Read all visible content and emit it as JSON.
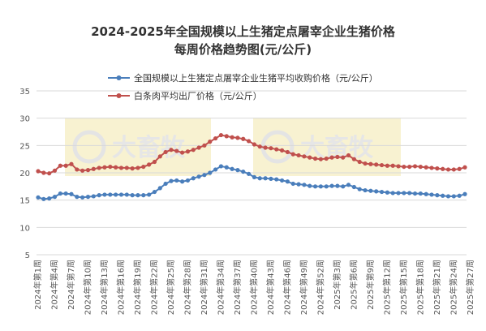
{
  "chart_data": {
    "type": "line",
    "title": "2024-2025年全国规模以上生猪定点屠宰企业生猪价格",
    "subtitle": "每周价格趋势图(元/公斤)",
    "xlabel": "",
    "ylabel": "",
    "ylim": [
      5,
      35
    ],
    "yticks": [
      5,
      10,
      15,
      20,
      25,
      30,
      35
    ],
    "grid": true,
    "legend_position": "top",
    "watermark": "大畜牧",
    "x_tick_labels": [
      "2024年第1周",
      "2024年第4周",
      "2024年第7周",
      "2024年第10周",
      "2024年第13周",
      "2024年第16周",
      "2024年第19周",
      "2024年第22周",
      "2024年第25周",
      "2024年第28周",
      "2024年第31周",
      "2024年第34周",
      "2024年第37周",
      "2024年第40周",
      "2024年第43周",
      "2024年第46周",
      "2024年第49周",
      "2024年第52周",
      "2025年第3周",
      "2025年第6周",
      "2025年第9周",
      "2025年第12周",
      "2025年第15周",
      "2025年第18周",
      "2025年第21周",
      "2025年第24周",
      "2025年第27周"
    ],
    "series": [
      {
        "name": "全国规模以上生猪定点屠宰企业生猪平均收购价格（元/公斤）",
        "color": "#4a7ebb",
        "values": [
          15.5,
          15.2,
          15.3,
          15.6,
          16.2,
          16.2,
          16.1,
          15.6,
          15.5,
          15.6,
          15.7,
          15.9,
          16.0,
          16.0,
          16.0,
          16.0,
          16.0,
          15.9,
          15.9,
          15.9,
          16.0,
          16.5,
          17.2,
          18.0,
          18.5,
          18.6,
          18.4,
          18.6,
          19.0,
          19.3,
          19.6,
          20.0,
          20.6,
          21.2,
          21.0,
          20.7,
          20.5,
          20.2,
          19.8,
          19.2,
          19.0,
          19.0,
          18.9,
          18.8,
          18.6,
          18.4,
          18.0,
          17.9,
          17.8,
          17.6,
          17.5,
          17.5,
          17.5,
          17.6,
          17.6,
          17.5,
          17.8,
          17.4,
          17.0,
          16.8,
          16.7,
          16.6,
          16.5,
          16.4,
          16.3,
          16.3,
          16.3,
          16.3,
          16.2,
          16.2,
          16.1,
          16.0,
          15.9,
          15.8,
          15.7,
          15.7,
          15.8,
          16.1
        ]
      },
      {
        "name": "白条肉平均出厂价格（元/公斤）",
        "color": "#c0504d",
        "values": [
          20.3,
          20.0,
          19.9,
          20.4,
          21.3,
          21.3,
          21.6,
          20.6,
          20.4,
          20.5,
          20.7,
          20.9,
          21.0,
          21.1,
          21.0,
          20.9,
          20.9,
          20.8,
          20.9,
          21.1,
          21.5,
          22.0,
          23.0,
          23.8,
          24.2,
          24.0,
          23.7,
          23.9,
          24.2,
          24.6,
          25.0,
          25.7,
          26.3,
          26.9,
          26.7,
          26.5,
          26.4,
          26.2,
          25.8,
          25.2,
          24.8,
          24.6,
          24.5,
          24.3,
          24.1,
          23.8,
          23.4,
          23.2,
          23.0,
          22.8,
          22.6,
          22.5,
          22.6,
          22.8,
          22.9,
          22.8,
          23.2,
          22.5,
          22.0,
          21.7,
          21.6,
          21.5,
          21.4,
          21.3,
          21.3,
          21.2,
          21.1,
          21.1,
          21.2,
          21.1,
          21.0,
          20.9,
          20.8,
          20.7,
          20.6,
          20.6,
          20.7,
          21.0
        ]
      }
    ]
  }
}
